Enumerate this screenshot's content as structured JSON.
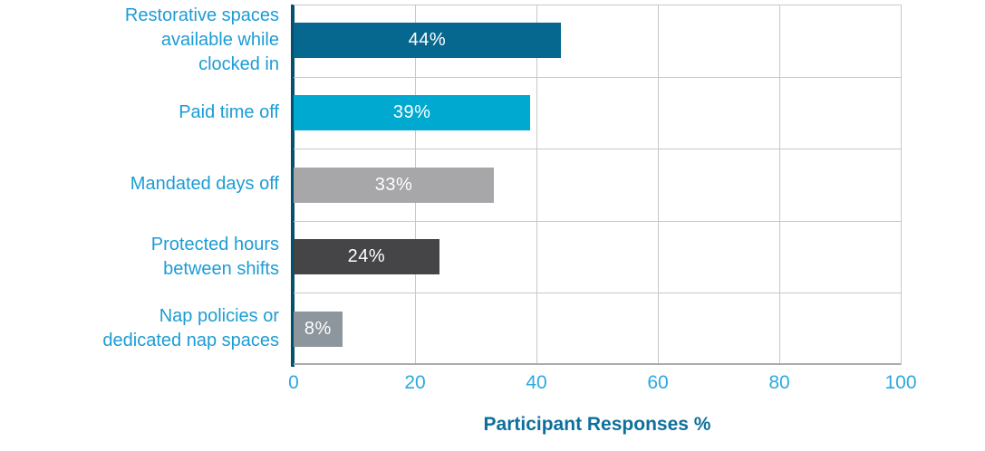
{
  "chart_data": {
    "type": "bar",
    "orientation": "horizontal",
    "categories": [
      "Restorative spaces\navailable while\nclocked in",
      "Paid time off",
      "Mandated days off",
      "Protected hours\nbetween shifts",
      "Nap policies or\ndedicated nap spaces"
    ],
    "values": [
      44,
      39,
      33,
      24,
      8
    ],
    "value_labels": [
      "44%",
      "39%",
      "33%",
      "24%",
      "8%"
    ],
    "bar_colors": [
      "#06678F",
      "#00A9CF",
      "#A7A6A9",
      "#454447",
      "#8D969D"
    ],
    "title": "",
    "xlabel": "Participant Responses %",
    "ylabel": "",
    "xticks": [
      0,
      20,
      40,
      60,
      80,
      100
    ],
    "xlim": [
      0,
      100
    ],
    "grid": true,
    "legend": false
  },
  "colors": {
    "category_label": "#1C9CD5",
    "tick_label": "#2BA9E0",
    "axis_title": "#0E6F9D",
    "value_label": "#FFFFFF",
    "gridline": "#C8C8C8",
    "axis_bottom": "#ACACAC",
    "y_axis_spine": "#03516F",
    "background": "#FFFFFF"
  }
}
